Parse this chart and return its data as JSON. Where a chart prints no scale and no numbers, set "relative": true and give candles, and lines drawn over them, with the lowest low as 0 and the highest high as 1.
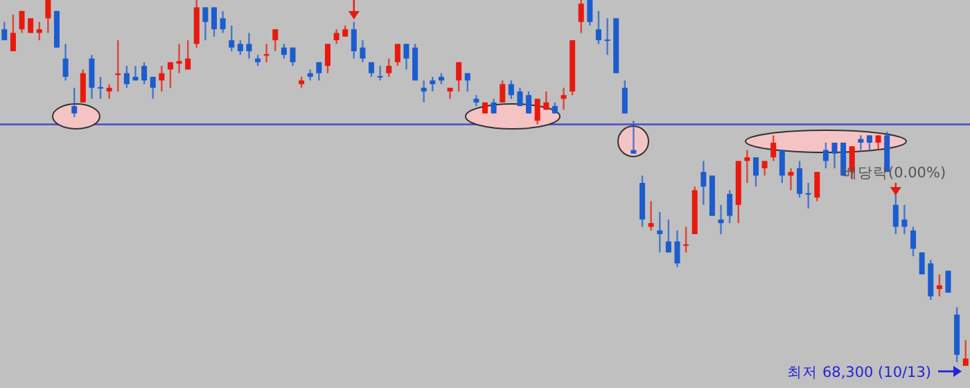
{
  "chart_data": {
    "type": "candlestick",
    "relative": true,
    "categories": [
      null,
      null,
      null,
      null,
      null,
      null,
      null,
      null,
      null,
      null,
      null,
      null,
      null,
      null,
      null,
      null,
      null,
      null,
      null,
      null,
      null,
      null,
      null,
      null,
      null,
      null,
      null,
      null,
      null,
      null,
      null,
      null,
      null,
      null,
      null,
      null,
      null,
      null,
      null,
      null,
      null,
      null,
      null,
      null,
      null,
      null,
      null,
      null,
      null,
      null,
      null,
      null,
      null,
      null,
      null,
      null,
      null,
      null,
      null,
      null,
      null,
      null,
      null,
      null,
      null,
      null,
      null,
      null,
      null,
      null,
      null,
      null,
      null,
      null,
      null,
      null,
      null,
      null,
      null,
      null,
      null,
      null,
      null,
      null,
      null,
      null,
      null,
      null,
      null,
      null,
      null,
      null,
      null,
      null,
      null,
      null,
      null,
      null,
      null,
      null,
      null,
      null,
      null,
      null,
      null,
      null,
      null,
      null,
      null,
      null,
      null
    ],
    "ohlc": [
      [
        0.92,
        0.94,
        0.89,
        0.89
      ],
      [
        0.86,
        0.96,
        0.86,
        0.91
      ],
      [
        0.92,
        0.97,
        0.91,
        0.97
      ],
      [
        0.91,
        0.95,
        0.91,
        0.95
      ],
      [
        0.91,
        0.94,
        0.89,
        0.92
      ],
      [
        0.95,
        1,
        0.91,
        1
      ],
      [
        0.97,
        0.97,
        0.87,
        0.87
      ],
      [
        0.84,
        0.88,
        0.78,
        0.79
      ],
      [
        0.71,
        0.76,
        0.68,
        0.69
      ],
      [
        0.72,
        0.81,
        0.72,
        0.8
      ],
      [
        0.84,
        0.85,
        0.73,
        0.76
      ],
      [
        0.762,
        0.79,
        0.73,
        0.758
      ],
      [
        0.75,
        0.77,
        0.73,
        0.76
      ],
      [
        0.795,
        0.89,
        0.75,
        0.799
      ],
      [
        0.8,
        0.82,
        0.76,
        0.77
      ],
      [
        0.79,
        0.82,
        0.78,
        0.78
      ],
      [
        0.82,
        0.83,
        0.77,
        0.78
      ],
      [
        0.79,
        0.79,
        0.73,
        0.76
      ],
      [
        0.78,
        0.82,
        0.75,
        0.8
      ],
      [
        0.81,
        0.83,
        0.76,
        0.83
      ],
      [
        0.826,
        0.88,
        0.8,
        0.833
      ],
      [
        0.81,
        0.89,
        0.81,
        0.84
      ],
      [
        0.88,
        1,
        0.87,
        0.98
      ],
      [
        0.98,
        0.98,
        0.89,
        0.94
      ],
      [
        0.98,
        0.98,
        0.9,
        0.92
      ],
      [
        0.95,
        0.97,
        0.91,
        0.92
      ],
      [
        0.89,
        0.93,
        0.86,
        0.87
      ],
      [
        0.88,
        0.89,
        0.85,
        0.86
      ],
      [
        0.88,
        0.91,
        0.84,
        0.86
      ],
      [
        0.84,
        0.85,
        0.82,
        0.83
      ],
      [
        0.848,
        0.88,
        0.83,
        0.852
      ],
      [
        0.89,
        0.92,
        0.86,
        0.92
      ],
      [
        0.87,
        0.88,
        0.84,
        0.85
      ],
      [
        0.87,
        0.87,
        0.82,
        0.83
      ],
      [
        0.77,
        0.79,
        0.76,
        0.78
      ],
      [
        0.8,
        0.81,
        0.78,
        0.79
      ],
      [
        0.83,
        0.83,
        0.78,
        0.8
      ],
      [
        0.82,
        0.88,
        0.8,
        0.88
      ],
      [
        0.89,
        0.92,
        0.88,
        0.91
      ],
      [
        0.9,
        0.93,
        0.9,
        0.92
      ],
      [
        0.92,
        0.94,
        0.84,
        0.86
      ],
      [
        0.87,
        0.89,
        0.83,
        0.84
      ],
      [
        0.83,
        0.83,
        0.79,
        0.8
      ],
      [
        0.792,
        0.82,
        0.78,
        0.788
      ],
      [
        0.8,
        0.84,
        0.79,
        0.82
      ],
      [
        0.83,
        0.88,
        0.82,
        0.88
      ],
      [
        0.88,
        0.88,
        0.81,
        0.84
      ],
      [
        0.87,
        0.88,
        0.78,
        0.78
      ],
      [
        0.76,
        0.78,
        0.72,
        0.75
      ],
      [
        0.78,
        0.79,
        0.75,
        0.77
      ],
      [
        0.79,
        0.8,
        0.77,
        0.78
      ],
      [
        0.75,
        0.76,
        0.73,
        0.76
      ],
      [
        0.78,
        0.83,
        0.75,
        0.83
      ],
      [
        0.8,
        0.8,
        0.75,
        0.78
      ],
      [
        0.73,
        0.74,
        0.71,
        0.72
      ],
      [
        0.69,
        0.72,
        0.69,
        0.72
      ],
      [
        0.72,
        0.73,
        0.69,
        0.69
      ],
      [
        0.72,
        0.78,
        0.72,
        0.77
      ],
      [
        0.77,
        0.78,
        0.73,
        0.74
      ],
      [
        0.75,
        0.76,
        0.71,
        0.71
      ],
      [
        0.74,
        0.75,
        0.69,
        0.69
      ],
      [
        0.67,
        0.73,
        0.66,
        0.73
      ],
      [
        0.7,
        0.75,
        0.7,
        0.72
      ],
      [
        0.71,
        0.72,
        0.69,
        0.69
      ],
      [
        0.73,
        0.76,
        0.7,
        0.74
      ],
      [
        0.75,
        0.89,
        0.74,
        0.89
      ],
      [
        0.94,
        1,
        0.91,
        0.99
      ],
      [
        1,
        1,
        0.93,
        0.94
      ],
      [
        0.92,
        0.97,
        0.88,
        0.89
      ],
      [
        0.89,
        0.95,
        0.85,
        0.89
      ],
      [
        0.95,
        0.95,
        0.8,
        0.8
      ],
      [
        0.76,
        0.78,
        0.69,
        0.69
      ],
      [
        0.59,
        0.67,
        0.58,
        0.58
      ],
      [
        0.5,
        0.52,
        0.38,
        0.4
      ],
      [
        0.38,
        0.45,
        0.37,
        0.39
      ],
      [
        0.37,
        0.42,
        0.31,
        0.36
      ],
      [
        0.34,
        0.4,
        0.31,
        0.31
      ],
      [
        0.34,
        0.37,
        0.27,
        0.28
      ],
      [
        0.33,
        0.38,
        0.31,
        0.33
      ],
      [
        0.36,
        0.49,
        0.36,
        0.48
      ],
      [
        0.53,
        0.56,
        0.44,
        0.49
      ],
      [
        0.52,
        0.52,
        0.41,
        0.41
      ],
      [
        0.4,
        0.44,
        0.36,
        0.39
      ],
      [
        0.47,
        0.48,
        0.39,
        0.41
      ],
      [
        0.44,
        0.56,
        0.39,
        0.56
      ],
      [
        0.56,
        0.59,
        0.5,
        0.57
      ],
      [
        0.57,
        0.57,
        0.49,
        0.52
      ],
      [
        0.54,
        0.56,
        0.52,
        0.56
      ],
      [
        0.57,
        0.63,
        0.56,
        0.61
      ],
      [
        0.59,
        0.59,
        0.5,
        0.52
      ],
      [
        0.52,
        0.54,
        0.48,
        0.53
      ],
      [
        0.54,
        0.56,
        0.46,
        0.47
      ],
      [
        0.47,
        0.5,
        0.43,
        0.47
      ],
      [
        0.46,
        0.53,
        0.45,
        0.53
      ],
      [
        0.59,
        0.61,
        0.54,
        0.56
      ],
      [
        0.61,
        0.61,
        0.54,
        0.58
      ],
      [
        0.61,
        0.61,
        0.52,
        0.52
      ],
      [
        0.53,
        0.6,
        0.51,
        0.6
      ],
      [
        0.62,
        0.63,
        0.59,
        0.61
      ],
      [
        0.63,
        0.63,
        0.59,
        0.61
      ],
      [
        0.61,
        0.63,
        0.59,
        0.63
      ],
      [
        0.63,
        0.64,
        0.53,
        0.53
      ],
      [
        0.44,
        0.47,
        0.36,
        0.38
      ],
      [
        0.4,
        0.44,
        0.36,
        0.38
      ],
      [
        0.37,
        0.38,
        0.3,
        0.32
      ],
      [
        0.31,
        0.31,
        0.25,
        0.25
      ],
      [
        0.28,
        0.29,
        0.18,
        0.19
      ],
      [
        0.21,
        0.25,
        0.19,
        0.22
      ],
      [
        0.26,
        0.26,
        0.2,
        0.2
      ],
      [
        0.14,
        0.16,
        0.01,
        0.03
      ],
      [
        0,
        0.07,
        0,
        0.02
      ]
    ],
    "colors": [
      "#1b5ccf",
      "#e8190e",
      "#e8190e",
      "#e8190e",
      "#e8190e",
      "#e8190e",
      "#1b5ccf",
      "#1b5ccf",
      "#1b5ccf",
      "#e8190e",
      "#1b5ccf",
      "#1b5ccf",
      "#e8190e",
      "#e8190e",
      "#1b5ccf",
      "#1b5ccf",
      "#1b5ccf",
      "#1b5ccf",
      "#e8190e",
      "#e8190e",
      "#e8190e",
      "#e8190e",
      "#e8190e",
      "#1b5ccf",
      "#1b5ccf",
      "#1b5ccf",
      "#1b5ccf",
      "#1b5ccf",
      "#1b5ccf",
      "#1b5ccf",
      "#e8190e",
      "#e8190e",
      "#1b5ccf",
      "#1b5ccf",
      "#e8190e",
      "#1b5ccf",
      "#1b5ccf",
      "#e8190e",
      "#e8190e",
      "#e8190e",
      "#1b5ccf",
      "#1b5ccf",
      "#1b5ccf",
      "#1b5ccf",
      "#e8190e",
      "#e8190e",
      "#1b5ccf",
      "#1b5ccf",
      "#1b5ccf",
      "#1b5ccf",
      "#1b5ccf",
      "#e8190e",
      "#e8190e",
      "#1b5ccf",
      "#1b5ccf",
      "#e8190e",
      "#1b5ccf",
      "#e8190e",
      "#1b5ccf",
      "#1b5ccf",
      "#1b5ccf",
      "#e8190e",
      "#e8190e",
      "#1b5ccf",
      "#e8190e",
      "#e8190e",
      "#e8190e",
      "#1b5ccf",
      "#1b5ccf",
      "#1b5ccf",
      "#1b5ccf",
      "#1b5ccf",
      "#1b5ccf",
      "#1b5ccf",
      "#e8190e",
      "#1b5ccf",
      "#1b5ccf",
      "#1b5ccf",
      "#e8190e",
      "#e8190e",
      "#1b5ccf",
      "#1b5ccf",
      "#1b5ccf",
      "#1b5ccf",
      "#e8190e",
      "#e8190e",
      "#1b5ccf",
      "#e8190e",
      "#e8190e",
      "#1b5ccf",
      "#e8190e",
      "#1b5ccf",
      "#1b5ccf",
      "#e8190e",
      "#1b5ccf",
      "#1b5ccf",
      "#1b5ccf",
      "#e8190e",
      "#1b5ccf",
      "#1b5ccf",
      "#e8190e",
      "#1b5ccf",
      "#1b5ccf",
      "#1b5ccf",
      "#1b5ccf",
      "#1b5ccf",
      "#1b5ccf",
      "#e8190e",
      "#1b5ccf",
      "#1b5ccf",
      "#e8190e"
    ],
    "ref_lines": [
      {
        "axis": "y",
        "value": 0.66,
        "color": "#4a4ac8"
      }
    ],
    "annotations": [
      "배당락(0.00%)",
      "최저 68,300 (10/13)"
    ]
  }
}
